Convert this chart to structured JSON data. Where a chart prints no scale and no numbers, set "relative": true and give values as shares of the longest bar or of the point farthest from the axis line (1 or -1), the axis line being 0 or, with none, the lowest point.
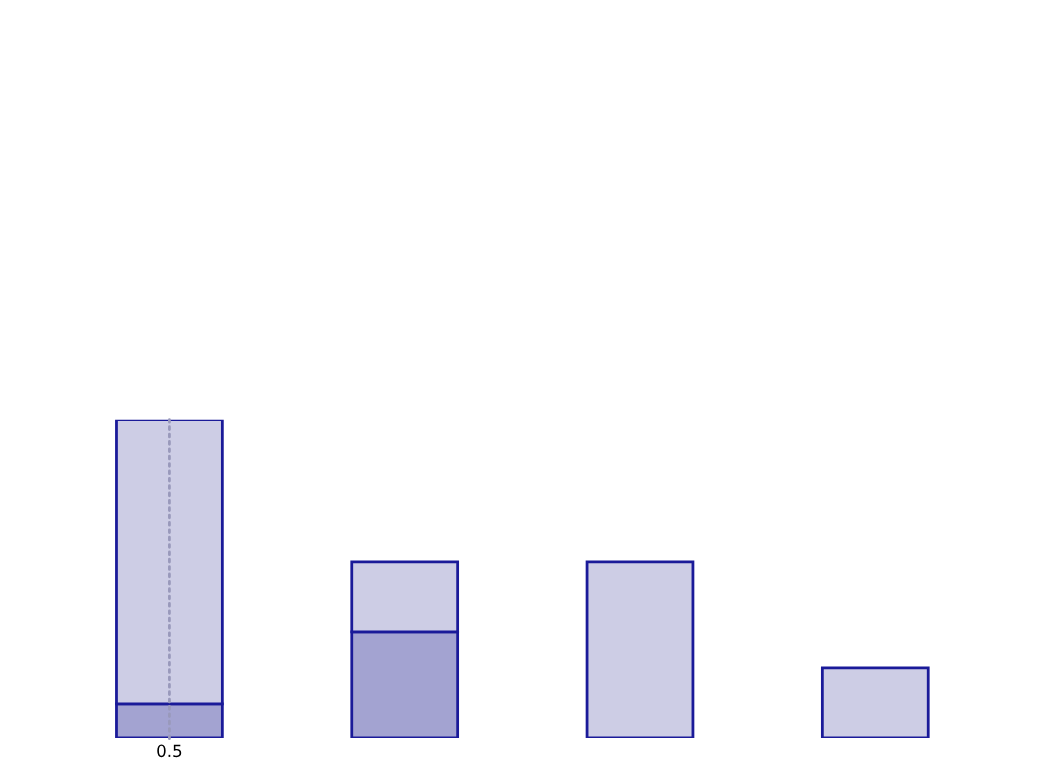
{
  "chart_data": {
    "type": "bar",
    "relative": true,
    "stacked": true,
    "categories": [
      null,
      null,
      null,
      null
    ],
    "annotations": [
      "0.5"
    ],
    "series": [
      {
        "color": "#a3a3d1",
        "values": [
          0.107,
          0.333,
          null,
          null
        ]
      },
      {
        "color": "#cdcde5",
        "values": [
          0.893,
          0.22,
          0.553,
          0.22
        ]
      }
    ]
  }
}
